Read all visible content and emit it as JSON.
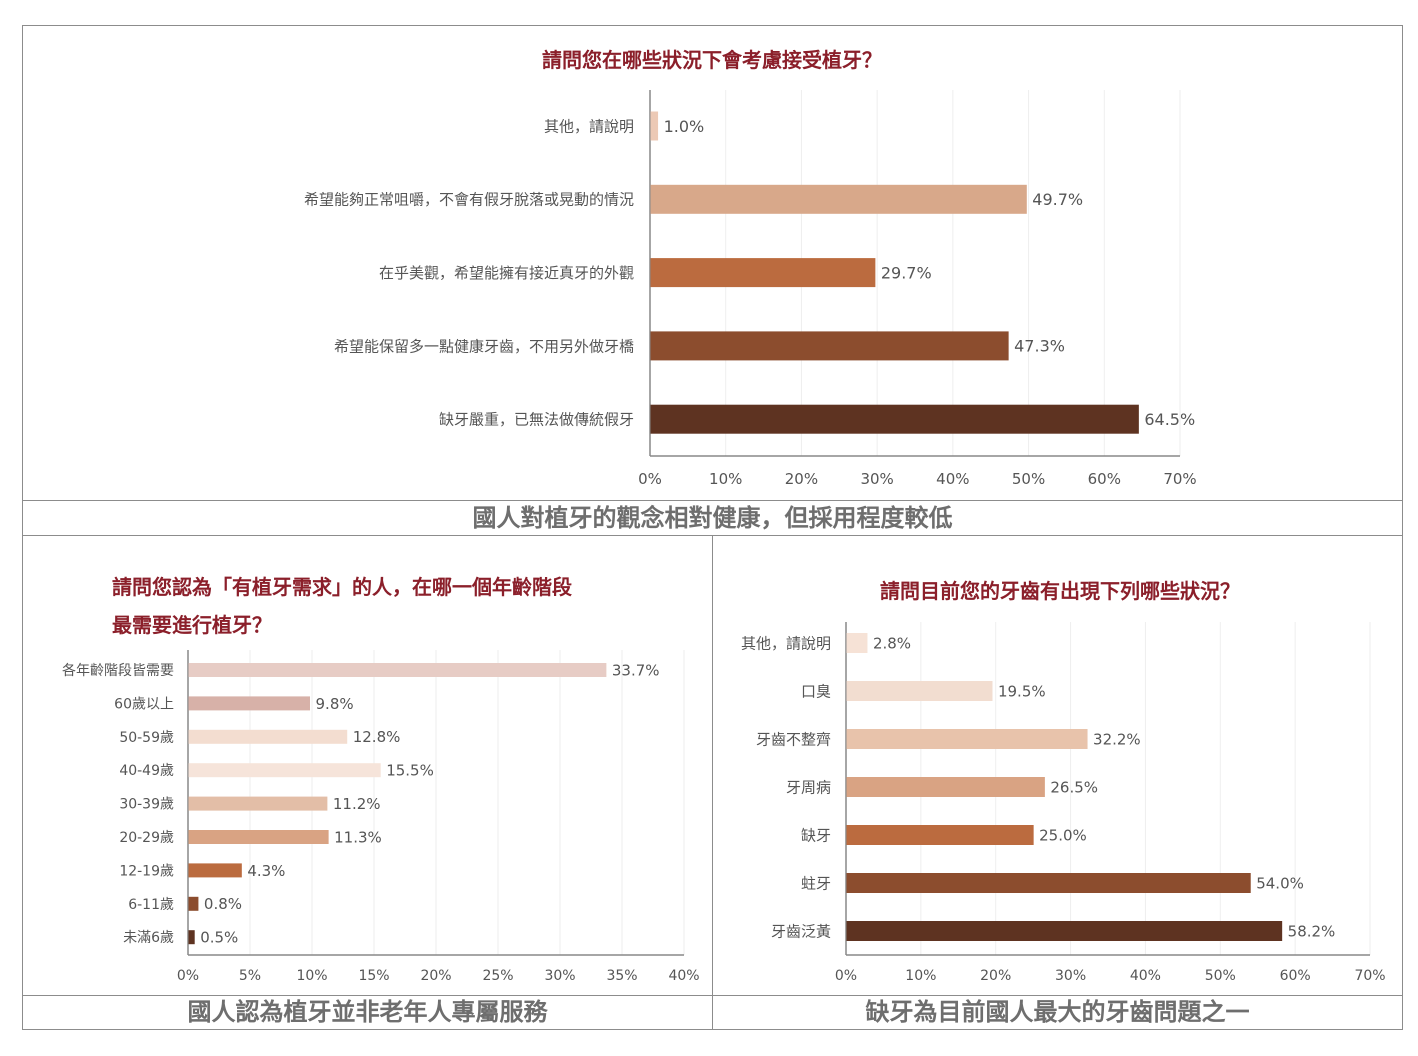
{
  "colors": {
    "title": "#8b1f2a",
    "caption": "#6e6e6e",
    "label": "#555555",
    "grid": "#eeeeee",
    "axis": "#888888"
  },
  "top_chart": {
    "caption": "國人對植牙的觀念相對健康，但採用程度較低",
    "chart_data": {
      "type": "bar",
      "orientation": "horizontal",
      "title": "請問您在哪些狀況下會考慮接受植牙？",
      "categories": [
        "其他，請說明",
        "希望能夠正常咀嚼，不會有假牙脫落或晃動的情況",
        "在乎美觀，希望能擁有接近真牙的外觀",
        "希望能保留多一點健康牙齒，不用另外做牙橋",
        "缺牙嚴重，已無法做傳統假牙"
      ],
      "values": [
        1.0,
        49.7,
        29.7,
        47.3,
        64.5
      ],
      "value_labels": [
        "1.0%",
        "49.7%",
        "29.7%",
        "47.3%",
        "64.5%"
      ],
      "bar_colors": [
        "#ecc9b5",
        "#d8a88a",
        "#bb6b3f",
        "#8c4d2e",
        "#5e3321"
      ],
      "xlim": [
        0,
        70
      ],
      "ticks": [
        0,
        10,
        20,
        30,
        40,
        50,
        60,
        70
      ],
      "tick_labels": [
        "0%",
        "10%",
        "20%",
        "30%",
        "40%",
        "50%",
        "60%",
        "70%"
      ],
      "grid": true
    }
  },
  "left_chart": {
    "caption": "國人認為植牙並非老年人專屬服務",
    "chart_data": {
      "type": "bar",
      "orientation": "horizontal",
      "title_lines": [
        "請問您認為「有植牙需求」的人，在哪一個年齡階段",
        "最需要進行植牙？"
      ],
      "categories": [
        "各年齡階段皆需要",
        "60歲以上",
        "50-59歲",
        "40-49歲",
        "30-39歲",
        "20-29歲",
        "12-19歲",
        "6-11歲",
        "未滿6歲"
      ],
      "values": [
        33.7,
        9.8,
        12.8,
        15.5,
        11.2,
        11.3,
        4.3,
        0.8,
        0.5
      ],
      "value_labels": [
        "33.7%",
        "9.8%",
        "12.8%",
        "15.5%",
        "11.2%",
        "11.3%",
        "4.3%",
        "0.8%",
        "0.5%"
      ],
      "bar_colors": [
        "#e7ccc5",
        "#d7b1a8",
        "#f3ddd0",
        "#f6e4da",
        "#e3bea7",
        "#d9a383",
        "#bb6b3f",
        "#8c4d2e",
        "#5e3321"
      ],
      "xlim": [
        0,
        40
      ],
      "ticks": [
        0,
        5,
        10,
        15,
        20,
        25,
        30,
        35,
        40
      ],
      "tick_labels": [
        "0%",
        "5%",
        "10%",
        "15%",
        "20%",
        "25%",
        "30%",
        "35%",
        "40%"
      ],
      "grid": true
    }
  },
  "right_chart": {
    "caption": "缺牙為目前國人最大的牙齒問題之一",
    "chart_data": {
      "type": "bar",
      "orientation": "horizontal",
      "title": "請問目前您的牙齒有出現下列哪些狀況？",
      "categories": [
        "其他，請說明",
        "口臭",
        "牙齒不整齊",
        "牙周病",
        "缺牙",
        "蛀牙",
        "牙齒泛黃"
      ],
      "values": [
        2.8,
        19.5,
        32.2,
        26.5,
        25.0,
        54.0,
        58.2
      ],
      "value_labels": [
        "2.8%",
        "19.5%",
        "32.2%",
        "26.5%",
        "25.0%",
        "54.0%",
        "58.2%"
      ],
      "bar_colors": [
        "#f6e2d6",
        "#f2ddd0",
        "#e8c3ab",
        "#d9a383",
        "#bb6b3f",
        "#8c4d2e",
        "#5e3321"
      ],
      "xlim": [
        0,
        70
      ],
      "ticks": [
        0,
        10,
        20,
        30,
        40,
        50,
        60,
        70
      ],
      "tick_labels": [
        "0%",
        "10%",
        "20%",
        "30%",
        "40%",
        "50%",
        "60%",
        "70%"
      ],
      "grid": true
    }
  }
}
